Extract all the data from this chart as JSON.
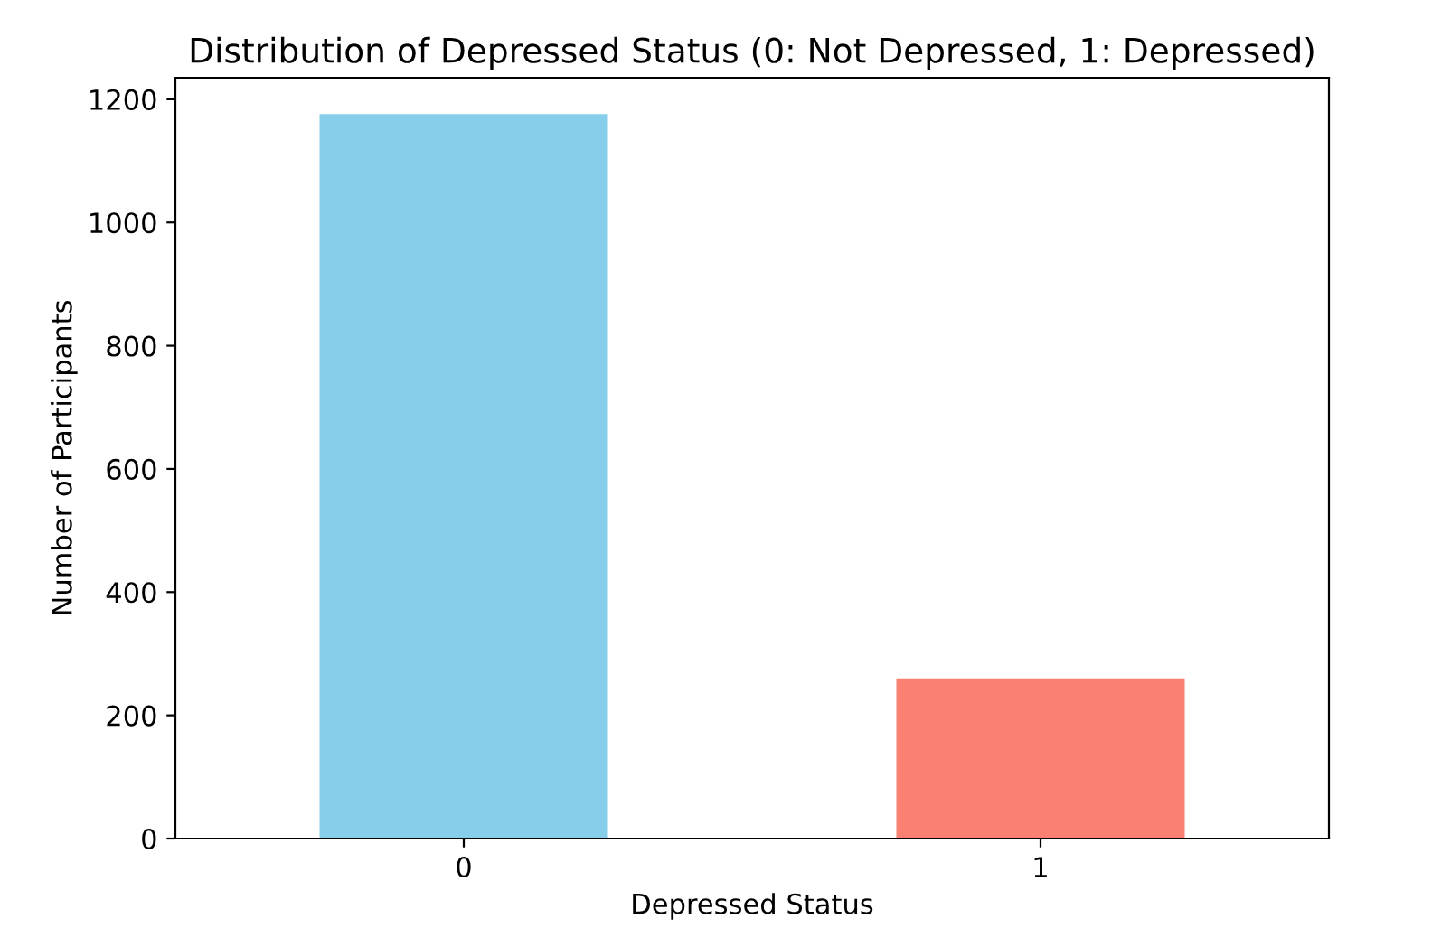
{
  "chart_data": {
    "type": "bar",
    "title": "Distribution of Depressed Status (0: Not Depressed, 1: Depressed)",
    "xlabel": "Depressed Status",
    "ylabel": "Number of Participants",
    "categories": [
      "0",
      "1"
    ],
    "values": [
      1176,
      260
    ],
    "colors": [
      "#87ceeb",
      "#fa8072"
    ],
    "ylim": [
      0,
      1235
    ],
    "yticks": [
      0,
      200,
      400,
      600,
      800,
      1000,
      1200
    ],
    "grid": false,
    "legend": false
  }
}
